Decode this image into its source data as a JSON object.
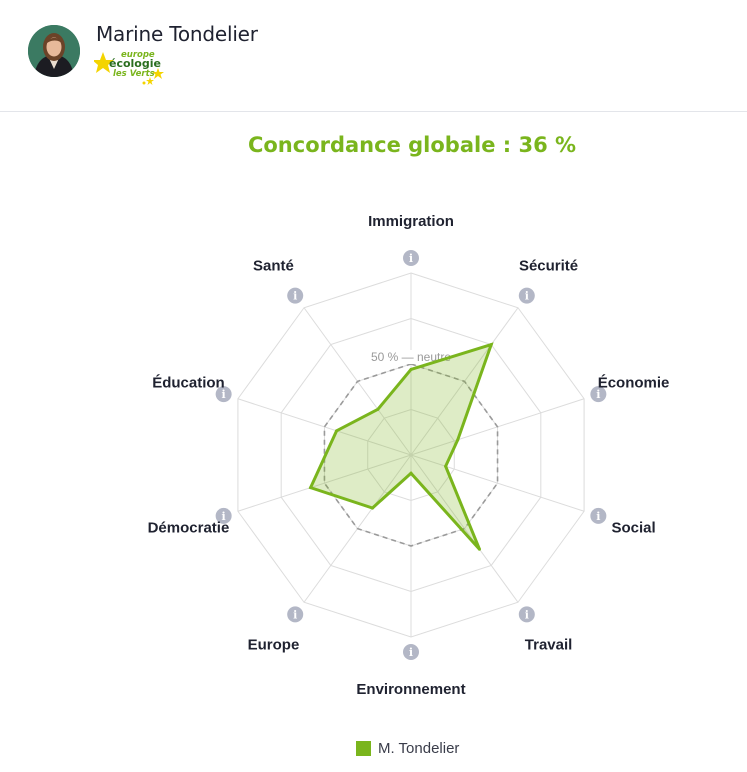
{
  "candidate": {
    "name": "Marine Tondelier",
    "party_logo_text": [
      "europe",
      "écologie",
      "les Verts"
    ]
  },
  "chart_data": {
    "type": "radar",
    "title": "Concordance globale : 36 %",
    "axes": [
      "Immigration",
      "Sécurité",
      "Économie",
      "Social",
      "Travail",
      "Environnement",
      "Europe",
      "Démocratie",
      "Éducation",
      "Santé"
    ],
    "scale_max": 100,
    "reference": {
      "label": "50 % — neutre",
      "value": 50
    },
    "series": [
      {
        "name": "M. Tondelier",
        "values": [
          47,
          75,
          27,
          20,
          64,
          10,
          36,
          58,
          43,
          31
        ]
      }
    ],
    "info_icon": "i",
    "colors": {
      "series": "#7ab51d",
      "series_fill": "rgba(122,181,29,0.25)",
      "grid": "#dcdcdc",
      "reference": "#9a9a9a",
      "info_badge": "#b3b7c6"
    }
  }
}
